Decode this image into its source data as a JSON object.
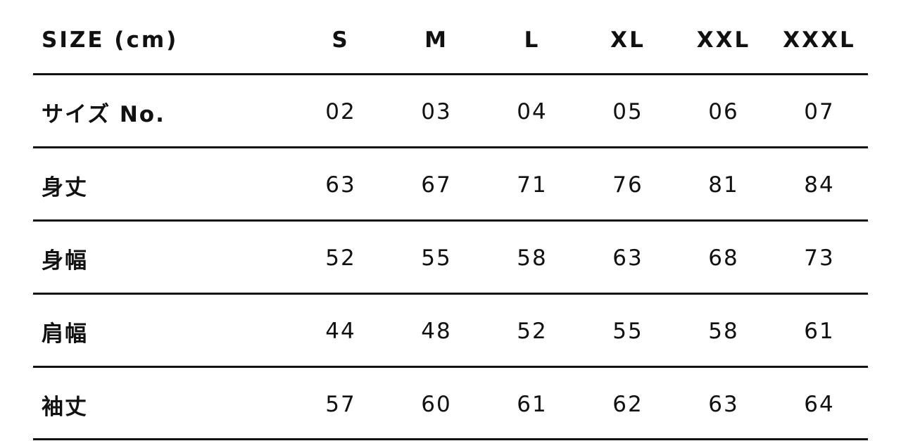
{
  "table": {
    "header": {
      "label": "SIZE (cm)",
      "sizes": [
        "S",
        "M",
        "L",
        "XL",
        "XXL",
        "XXXL"
      ]
    },
    "rows": [
      {
        "label": "サイズ No.",
        "values": [
          "02",
          "03",
          "04",
          "05",
          "06",
          "07"
        ]
      },
      {
        "label": "身丈",
        "values": [
          "63",
          "67",
          "71",
          "76",
          "81",
          "84"
        ]
      },
      {
        "label": "身幅",
        "values": [
          "52",
          "55",
          "58",
          "63",
          "68",
          "73"
        ]
      },
      {
        "label": "肩幅",
        "values": [
          "44",
          "48",
          "52",
          "55",
          "58",
          "61"
        ]
      },
      {
        "label": "袖丈",
        "values": [
          "57",
          "60",
          "61",
          "62",
          "63",
          "64"
        ]
      }
    ]
  }
}
